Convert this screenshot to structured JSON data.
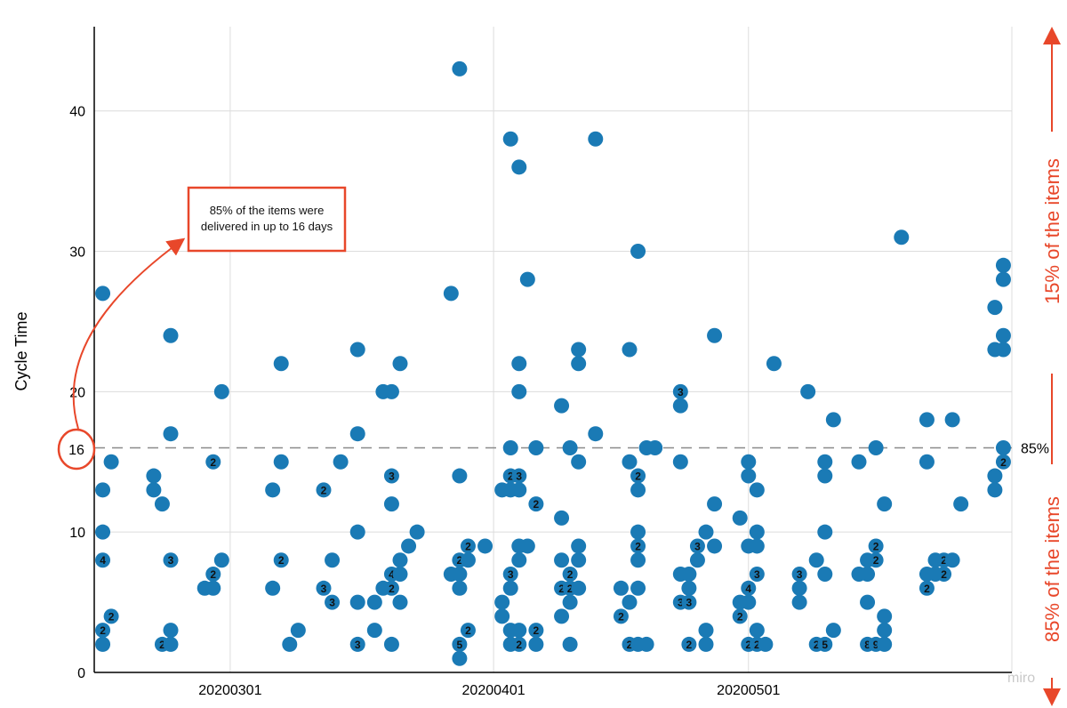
{
  "chart_data": {
    "type": "scatter",
    "title": "",
    "xlabel": "",
    "ylabel": "Cycle Time",
    "x_tick_labels": [
      "20200301",
      "20200401",
      "20200501"
    ],
    "x_ticks": [
      "2020-03-01",
      "2020-04-01",
      "2020-05-01"
    ],
    "xlim": [
      "2020-02-14",
      "2020-06-01"
    ],
    "ylim": [
      0,
      46
    ],
    "y_ticks": [
      0,
      10,
      20,
      30,
      40
    ],
    "grid": true,
    "percentile_line": {
      "value": 16,
      "label": "85%",
      "marked_value": "16"
    },
    "annotation": {
      "text_line1": "85% of the items were",
      "text_line2": "delivered in up to 16 days"
    },
    "side_labels": {
      "upper": "15% of the  items",
      "lower": "85% of the  items"
    },
    "watermark": "miro",
    "colors": {
      "points": "#1a7ab5",
      "annotation": "#e8472a",
      "grid": "#dcdcdc",
      "percentile_line": "#8a8a8a"
    },
    "points": [
      {
        "x": "2020-02-15",
        "y": 27
      },
      {
        "x": "2020-02-15",
        "y": 13
      },
      {
        "x": "2020-02-15",
        "y": 10
      },
      {
        "x": "2020-02-15",
        "y": 8,
        "n": "4"
      },
      {
        "x": "2020-02-15",
        "y": 3,
        "n": "2"
      },
      {
        "x": "2020-02-15",
        "y": 2
      },
      {
        "x": "2020-02-16",
        "y": 15
      },
      {
        "x": "2020-02-16",
        "y": 4,
        "n": "2"
      },
      {
        "x": "2020-02-21",
        "y": 14
      },
      {
        "x": "2020-02-21",
        "y": 13
      },
      {
        "x": "2020-02-22",
        "y": 12
      },
      {
        "x": "2020-02-22",
        "y": 2,
        "n": "2"
      },
      {
        "x": "2020-02-23",
        "y": 24
      },
      {
        "x": "2020-02-23",
        "y": 17
      },
      {
        "x": "2020-02-23",
        "y": 8,
        "n": "3"
      },
      {
        "x": "2020-02-23",
        "y": 3
      },
      {
        "x": "2020-02-23",
        "y": 2
      },
      {
        "x": "2020-02-27",
        "y": 6
      },
      {
        "x": "2020-02-28",
        "y": 15,
        "n": "2"
      },
      {
        "x": "2020-02-28",
        "y": 7,
        "n": "2"
      },
      {
        "x": "2020-02-28",
        "y": 6
      },
      {
        "x": "2020-02-29",
        "y": 20
      },
      {
        "x": "2020-02-29",
        "y": 8
      },
      {
        "x": "2020-03-06",
        "y": 13
      },
      {
        "x": "2020-03-06",
        "y": 6
      },
      {
        "x": "2020-03-07",
        "y": 22
      },
      {
        "x": "2020-03-07",
        "y": 15
      },
      {
        "x": "2020-03-07",
        "y": 8,
        "n": "2"
      },
      {
        "x": "2020-03-08",
        "y": 2
      },
      {
        "x": "2020-03-09",
        "y": 3
      },
      {
        "x": "2020-03-12",
        "y": 13,
        "n": "2"
      },
      {
        "x": "2020-03-12",
        "y": 6,
        "n": "3"
      },
      {
        "x": "2020-03-13",
        "y": 8
      },
      {
        "x": "2020-03-13",
        "y": 5,
        "n": "3"
      },
      {
        "x": "2020-03-14",
        "y": 15
      },
      {
        "x": "2020-03-16",
        "y": 23
      },
      {
        "x": "2020-03-16",
        "y": 17
      },
      {
        "x": "2020-03-16",
        "y": 10
      },
      {
        "x": "2020-03-16",
        "y": 5
      },
      {
        "x": "2020-03-16",
        "y": 2,
        "n": "3"
      },
      {
        "x": "2020-03-18",
        "y": 5
      },
      {
        "x": "2020-03-18",
        "y": 3
      },
      {
        "x": "2020-03-19",
        "y": 20
      },
      {
        "x": "2020-03-19",
        "y": 6
      },
      {
        "x": "2020-03-20",
        "y": 20
      },
      {
        "x": "2020-03-20",
        "y": 14,
        "n": "3"
      },
      {
        "x": "2020-03-20",
        "y": 12
      },
      {
        "x": "2020-03-20",
        "y": 7,
        "n": "4"
      },
      {
        "x": "2020-03-20",
        "y": 6,
        "n": "2"
      },
      {
        "x": "2020-03-20",
        "y": 2
      },
      {
        "x": "2020-03-21",
        "y": 22
      },
      {
        "x": "2020-03-21",
        "y": 8
      },
      {
        "x": "2020-03-21",
        "y": 7
      },
      {
        "x": "2020-03-21",
        "y": 5
      },
      {
        "x": "2020-03-22",
        "y": 9
      },
      {
        "x": "2020-03-23",
        "y": 10
      },
      {
        "x": "2020-03-27",
        "y": 27
      },
      {
        "x": "2020-03-27",
        "y": 7
      },
      {
        "x": "2020-03-28",
        "y": 43
      },
      {
        "x": "2020-03-28",
        "y": 14
      },
      {
        "x": "2020-03-28",
        "y": 8,
        "n": "2"
      },
      {
        "x": "2020-03-28",
        "y": 7
      },
      {
        "x": "2020-03-28",
        "y": 6
      },
      {
        "x": "2020-03-28",
        "y": 2,
        "n": "5"
      },
      {
        "x": "2020-03-28",
        "y": 1
      },
      {
        "x": "2020-03-29",
        "y": 9,
        "n": "2"
      },
      {
        "x": "2020-03-29",
        "y": 8
      },
      {
        "x": "2020-03-29",
        "y": 3,
        "n": "2"
      },
      {
        "x": "2020-03-31",
        "y": 9
      },
      {
        "x": "2020-04-02",
        "y": 13
      },
      {
        "x": "2020-04-02",
        "y": 5
      },
      {
        "x": "2020-04-02",
        "y": 4
      },
      {
        "x": "2020-04-03",
        "y": 38
      },
      {
        "x": "2020-04-03",
        "y": 16
      },
      {
        "x": "2020-04-03",
        "y": 14,
        "n": "2"
      },
      {
        "x": "2020-04-03",
        "y": 13
      },
      {
        "x": "2020-04-03",
        "y": 7,
        "n": "3"
      },
      {
        "x": "2020-04-03",
        "y": 6
      },
      {
        "x": "2020-04-03",
        "y": 3
      },
      {
        "x": "2020-04-03",
        "y": 2
      },
      {
        "x": "2020-04-04",
        "y": 36
      },
      {
        "x": "2020-04-04",
        "y": 22
      },
      {
        "x": "2020-04-04",
        "y": 20
      },
      {
        "x": "2020-04-04",
        "y": 14,
        "n": "3"
      },
      {
        "x": "2020-04-04",
        "y": 13
      },
      {
        "x": "2020-04-04",
        "y": 9
      },
      {
        "x": "2020-04-04",
        "y": 8
      },
      {
        "x": "2020-04-04",
        "y": 3
      },
      {
        "x": "2020-04-04",
        "y": 2,
        "n": "2"
      },
      {
        "x": "2020-04-05",
        "y": 28
      },
      {
        "x": "2020-04-05",
        "y": 9
      },
      {
        "x": "2020-04-06",
        "y": 16
      },
      {
        "x": "2020-04-06",
        "y": 12,
        "n": "2"
      },
      {
        "x": "2020-04-06",
        "y": 3,
        "n": "2"
      },
      {
        "x": "2020-04-06",
        "y": 2
      },
      {
        "x": "2020-04-09",
        "y": 19
      },
      {
        "x": "2020-04-09",
        "y": 11
      },
      {
        "x": "2020-04-09",
        "y": 8
      },
      {
        "x": "2020-04-09",
        "y": 6,
        "n": "2"
      },
      {
        "x": "2020-04-09",
        "y": 4
      },
      {
        "x": "2020-04-10",
        "y": 16
      },
      {
        "x": "2020-04-10",
        "y": 7,
        "n": "2"
      },
      {
        "x": "2020-04-10",
        "y": 6,
        "n": "2"
      },
      {
        "x": "2020-04-10",
        "y": 5
      },
      {
        "x": "2020-04-10",
        "y": 2
      },
      {
        "x": "2020-04-11",
        "y": 23
      },
      {
        "x": "2020-04-11",
        "y": 22
      },
      {
        "x": "2020-04-11",
        "y": 15
      },
      {
        "x": "2020-04-11",
        "y": 9
      },
      {
        "x": "2020-04-11",
        "y": 8
      },
      {
        "x": "2020-04-11",
        "y": 6
      },
      {
        "x": "2020-04-13",
        "y": 38
      },
      {
        "x": "2020-04-13",
        "y": 17
      },
      {
        "x": "2020-04-16",
        "y": 6
      },
      {
        "x": "2020-04-16",
        "y": 4,
        "n": "2"
      },
      {
        "x": "2020-04-17",
        "y": 23
      },
      {
        "x": "2020-04-17",
        "y": 15
      },
      {
        "x": "2020-04-17",
        "y": 5
      },
      {
        "x": "2020-04-17",
        "y": 2,
        "n": "2"
      },
      {
        "x": "2020-04-18",
        "y": 30
      },
      {
        "x": "2020-04-18",
        "y": 14,
        "n": "2"
      },
      {
        "x": "2020-04-18",
        "y": 13
      },
      {
        "x": "2020-04-18",
        "y": 10
      },
      {
        "x": "2020-04-18",
        "y": 9,
        "n": "2"
      },
      {
        "x": "2020-04-18",
        "y": 8
      },
      {
        "x": "2020-04-18",
        "y": 6
      },
      {
        "x": "2020-04-18",
        "y": 2
      },
      {
        "x": "2020-04-19",
        "y": 16
      },
      {
        "x": "2020-04-19",
        "y": 2
      },
      {
        "x": "2020-04-20",
        "y": 16
      },
      {
        "x": "2020-04-23",
        "y": 20,
        "n": "3"
      },
      {
        "x": "2020-04-23",
        "y": 19
      },
      {
        "x": "2020-04-23",
        "y": 15
      },
      {
        "x": "2020-04-23",
        "y": 7
      },
      {
        "x": "2020-04-23",
        "y": 5,
        "n": "3"
      },
      {
        "x": "2020-04-24",
        "y": 7
      },
      {
        "x": "2020-04-24",
        "y": 6
      },
      {
        "x": "2020-04-24",
        "y": 5,
        "n": "3"
      },
      {
        "x": "2020-04-24",
        "y": 2,
        "n": "2"
      },
      {
        "x": "2020-04-25",
        "y": 9,
        "n": "3"
      },
      {
        "x": "2020-04-25",
        "y": 8
      },
      {
        "x": "2020-04-26",
        "y": 10
      },
      {
        "x": "2020-04-26",
        "y": 3
      },
      {
        "x": "2020-04-26",
        "y": 2
      },
      {
        "x": "2020-04-27",
        "y": 24
      },
      {
        "x": "2020-04-27",
        "y": 12
      },
      {
        "x": "2020-04-27",
        "y": 9
      },
      {
        "x": "2020-04-30",
        "y": 11
      },
      {
        "x": "2020-04-30",
        "y": 5
      },
      {
        "x": "2020-04-30",
        "y": 4,
        "n": "2"
      },
      {
        "x": "2020-05-01",
        "y": 15
      },
      {
        "x": "2020-05-01",
        "y": 14
      },
      {
        "x": "2020-05-01",
        "y": 9
      },
      {
        "x": "2020-05-01",
        "y": 6,
        "n": "4"
      },
      {
        "x": "2020-05-01",
        "y": 5
      },
      {
        "x": "2020-05-01",
        "y": 2,
        "n": "2"
      },
      {
        "x": "2020-05-02",
        "y": 13
      },
      {
        "x": "2020-05-02",
        "y": 10
      },
      {
        "x": "2020-05-02",
        "y": 9
      },
      {
        "x": "2020-05-02",
        "y": 7,
        "n": "3"
      },
      {
        "x": "2020-05-02",
        "y": 3
      },
      {
        "x": "2020-05-02",
        "y": 2,
        "n": "2"
      },
      {
        "x": "2020-05-03",
        "y": 2
      },
      {
        "x": "2020-05-04",
        "y": 22
      },
      {
        "x": "2020-05-07",
        "y": 7,
        "n": "3"
      },
      {
        "x": "2020-05-07",
        "y": 6
      },
      {
        "x": "2020-05-07",
        "y": 5
      },
      {
        "x": "2020-05-08",
        "y": 20
      },
      {
        "x": "2020-05-09",
        "y": 8
      },
      {
        "x": "2020-05-09",
        "y": 2,
        "n": "2"
      },
      {
        "x": "2020-05-10",
        "y": 15
      },
      {
        "x": "2020-05-10",
        "y": 14
      },
      {
        "x": "2020-05-10",
        "y": 10
      },
      {
        "x": "2020-05-10",
        "y": 7
      },
      {
        "x": "2020-05-10",
        "y": 2,
        "n": "5"
      },
      {
        "x": "2020-05-11",
        "y": 18
      },
      {
        "x": "2020-05-11",
        "y": 3
      },
      {
        "x": "2020-05-14",
        "y": 15
      },
      {
        "x": "2020-05-14",
        "y": 7
      },
      {
        "x": "2020-05-15",
        "y": 8
      },
      {
        "x": "2020-05-15",
        "y": 7
      },
      {
        "x": "2020-05-15",
        "y": 5
      },
      {
        "x": "2020-05-15",
        "y": 2,
        "n": "8"
      },
      {
        "x": "2020-05-16",
        "y": 16
      },
      {
        "x": "2020-05-16",
        "y": 9,
        "n": "2"
      },
      {
        "x": "2020-05-16",
        "y": 8,
        "n": "2"
      },
      {
        "x": "2020-05-16",
        "y": 2,
        "n": "9"
      },
      {
        "x": "2020-05-17",
        "y": 12
      },
      {
        "x": "2020-05-17",
        "y": 4
      },
      {
        "x": "2020-05-17",
        "y": 3
      },
      {
        "x": "2020-05-17",
        "y": 2
      },
      {
        "x": "2020-05-19",
        "y": 31
      },
      {
        "x": "2020-05-22",
        "y": 18
      },
      {
        "x": "2020-05-22",
        "y": 15
      },
      {
        "x": "2020-05-22",
        "y": 7
      },
      {
        "x": "2020-05-22",
        "y": 6,
        "n": "2"
      },
      {
        "x": "2020-05-23",
        "y": 8
      },
      {
        "x": "2020-05-23",
        "y": 7
      },
      {
        "x": "2020-05-24",
        "y": 8,
        "n": "2"
      },
      {
        "x": "2020-05-24",
        "y": 7,
        "n": "2"
      },
      {
        "x": "2020-05-25",
        "y": 18
      },
      {
        "x": "2020-05-25",
        "y": 8
      },
      {
        "x": "2020-05-26",
        "y": 12
      },
      {
        "x": "2020-05-30",
        "y": 26
      },
      {
        "x": "2020-05-30",
        "y": 23
      },
      {
        "x": "2020-05-30",
        "y": 14
      },
      {
        "x": "2020-05-30",
        "y": 13
      },
      {
        "x": "2020-05-31",
        "y": 29
      },
      {
        "x": "2020-05-31",
        "y": 28
      },
      {
        "x": "2020-05-31",
        "y": 24
      },
      {
        "x": "2020-05-31",
        "y": 23
      },
      {
        "x": "2020-05-31",
        "y": 16
      },
      {
        "x": "2020-05-31",
        "y": 15,
        "n": "2"
      }
    ]
  }
}
